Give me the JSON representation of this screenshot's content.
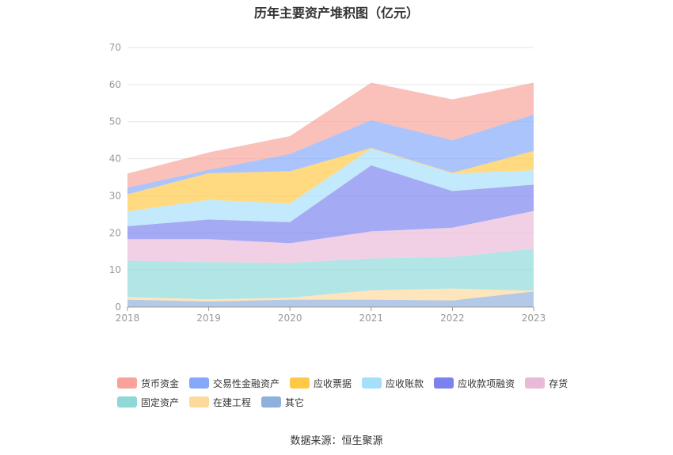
{
  "title": "历年主要资产堆积图（亿元）",
  "source": "数据来源：恒生聚源",
  "chart_data": {
    "type": "area",
    "stacked": true,
    "categories": [
      "2018",
      "2019",
      "2020",
      "2021",
      "2022",
      "2023"
    ],
    "ylim": [
      0,
      70
    ],
    "yticks": [
      0,
      10,
      20,
      30,
      40,
      50,
      60,
      70
    ],
    "grid": true,
    "legend_position": "bottom",
    "series": [
      {
        "name": "其它",
        "color": "#8fb0dc",
        "values": [
          2.0,
          1.5,
          2.0,
          2.0,
          1.8,
          4.2
        ]
      },
      {
        "name": "在建工程",
        "color": "#fdd99c",
        "values": [
          0.7,
          0.6,
          0.5,
          2.5,
          3.2,
          0.2
        ]
      },
      {
        "name": "固定资产",
        "color": "#8ed8d8",
        "values": [
          9.8,
          10.0,
          9.4,
          8.6,
          8.5,
          11.3
        ]
      },
      {
        "name": "存货",
        "color": "#ebb9d8",
        "values": [
          5.8,
          6.2,
          5.3,
          7.3,
          7.9,
          10.2
        ]
      },
      {
        "name": "应收款项融资",
        "color": "#7b82ef",
        "values": [
          3.5,
          5.3,
          5.7,
          17.8,
          9.9,
          7.1
        ]
      },
      {
        "name": "应收账款",
        "color": "#a5dffa",
        "values": [
          4.0,
          5.3,
          5.0,
          4.5,
          4.7,
          3.9
        ]
      },
      {
        "name": "应收票据",
        "color": "#ffc845",
        "values": [
          4.6,
          7.2,
          8.7,
          0.2,
          0.2,
          5.2
        ]
      },
      {
        "name": "交易性金融资产",
        "color": "#85a8fa",
        "values": [
          1.8,
          0.9,
          4.7,
          7.5,
          8.8,
          9.8
        ]
      },
      {
        "name": "货币资金",
        "color": "#f8a29a",
        "values": [
          3.8,
          4.7,
          4.8,
          10.1,
          11.0,
          8.6
        ]
      }
    ]
  },
  "legend": {
    "rows": [
      [
        {
          "name": "货币资金",
          "color": "#f8a29a"
        },
        {
          "name": "交易性金融资产",
          "color": "#85a8fa"
        },
        {
          "name": "应收票据",
          "color": "#ffc845"
        },
        {
          "name": "应收账款",
          "color": "#a5dffa"
        },
        {
          "name": "应收款项融资",
          "color": "#7b82ef"
        },
        {
          "name": "存货",
          "color": "#ebb9d8"
        }
      ],
      [
        {
          "name": "固定资产",
          "color": "#8ed8d8"
        },
        {
          "name": "在建工程",
          "color": "#fdd99c"
        },
        {
          "name": "其它",
          "color": "#8fb0dc"
        }
      ]
    ]
  }
}
